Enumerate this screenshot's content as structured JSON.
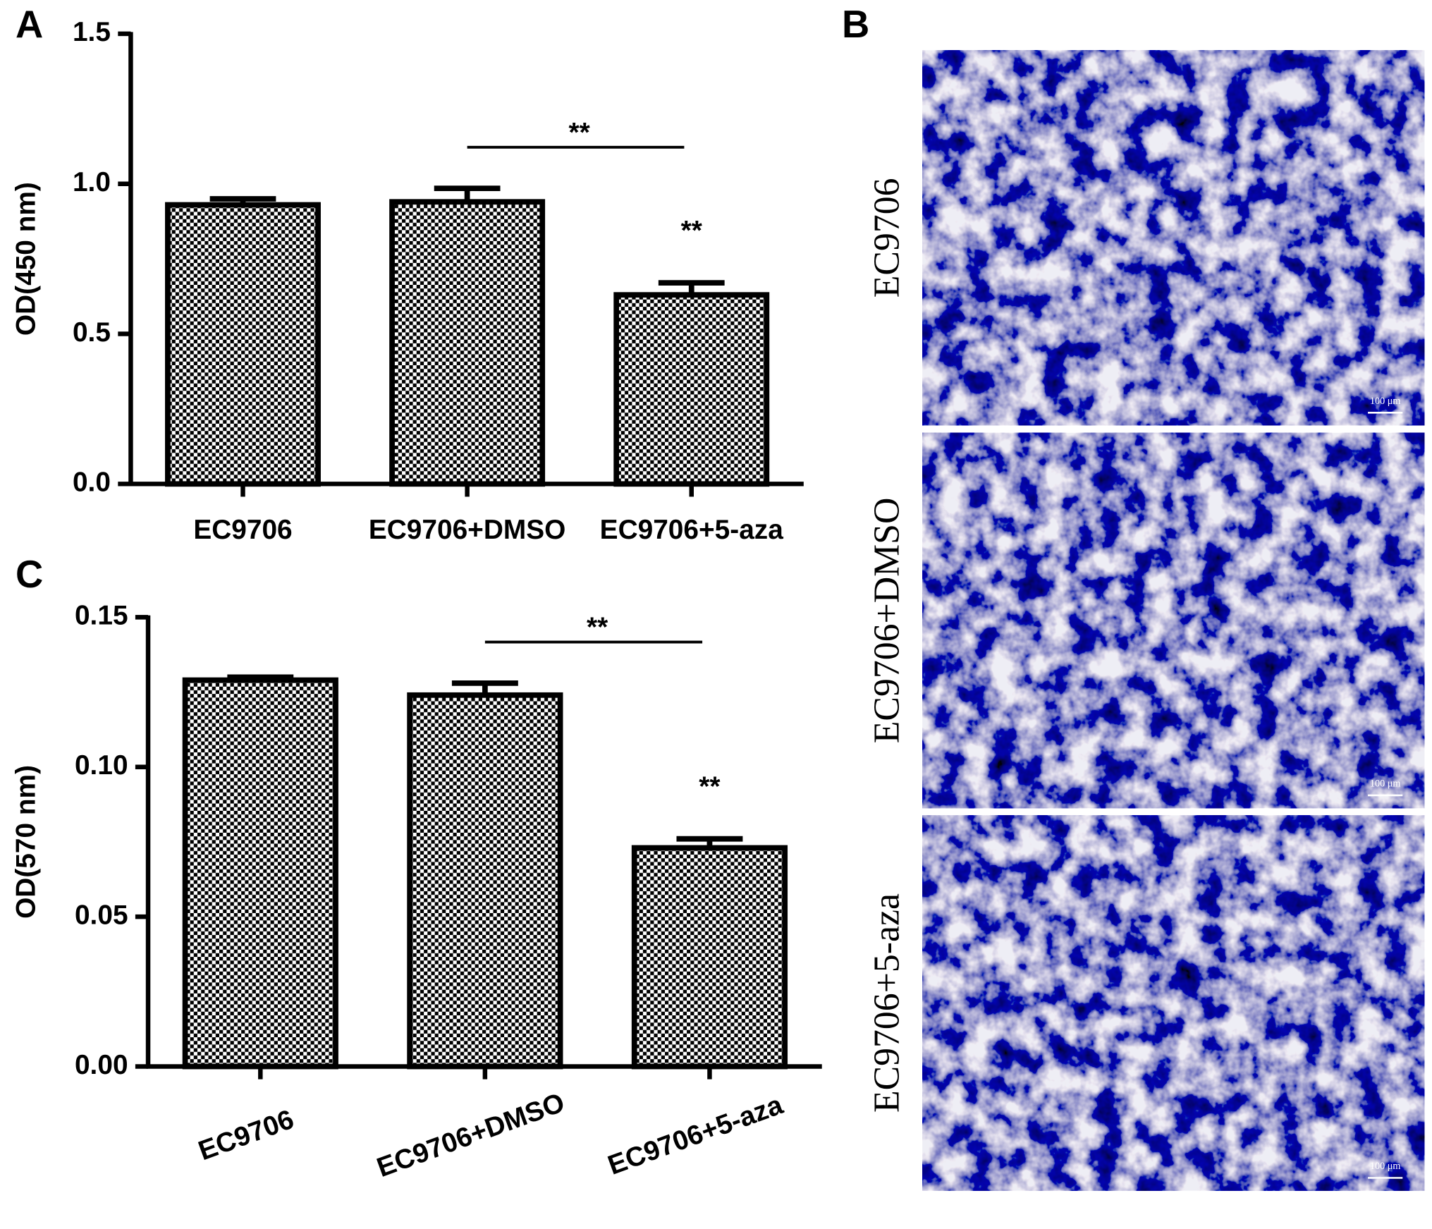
{
  "panel_labels": [
    "A",
    "B",
    "C"
  ],
  "chart_data": [
    {
      "type": "bar",
      "y_label": "OD(450 nm)",
      "categories": [
        "EC9706",
        "EC9706+DMSO",
        "EC9706+5-aza"
      ],
      "values": [
        0.93,
        0.94,
        0.63
      ],
      "errors": [
        0.02,
        0.045,
        0.04
      ],
      "ylim": [
        0,
        1.5
      ],
      "yticks": [
        {
          "value": 0,
          "label": "0.0"
        },
        0.5,
        {
          "value": 1,
          "label": "1.0"
        },
        1.5
      ],
      "annotations": [
        "**",
        "**"
      ],
      "color": "#000000"
    },
    {
      "type": "bar",
      "y_label": "OD(570 nm)",
      "categories": [
        "EC9706",
        "EC9706+DMSO",
        "EC9706+5-aza"
      ],
      "values": [
        0.129,
        0.124,
        0.073
      ],
      "errors": [
        0.001,
        0.004,
        0.003
      ],
      "ylim": [
        0,
        0.15
      ],
      "yticks": [
        {
          "value": 0,
          "label": "0.00"
        },
        0.05,
        {
          "value": 0.1,
          "label": "0.10"
        },
        0.15
      ],
      "annotations": [
        "**",
        "**"
      ],
      "color": "#000000"
    }
  ],
  "micrographs": [
    {
      "label": "EC9706",
      "scale_bar": "100 μm"
    },
    {
      "label": "EC9706+DMSO",
      "scale_bar": "100 μm"
    },
    {
      "label": "EC9706+5-aza",
      "scale_bar": "100 μm"
    }
  ]
}
